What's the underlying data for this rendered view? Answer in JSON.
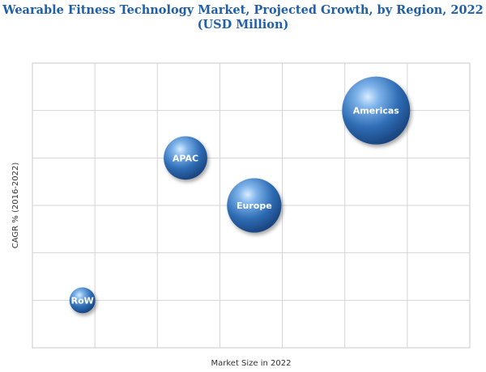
{
  "chart_data": {
    "type": "scatter",
    "title_line1": "Wearable Fitness Technology Market, Projected Growth, by Region, 2022",
    "title_line2": "(USD Million)",
    "xlabel": "Market Size in 2022",
    "ylabel": "CAGR % (2016-2022)",
    "grid": true,
    "x_ticks_shown": false,
    "y_ticks_shown": false,
    "xlim": [
      0,
      7
    ],
    "ylim": [
      0,
      6
    ],
    "points": [
      {
        "label": "Americas",
        "x": 5.5,
        "y": 5.0,
        "size": 1.0
      },
      {
        "label": "APAC",
        "x": 2.45,
        "y": 4.0,
        "size": 0.64
      },
      {
        "label": "Europe",
        "x": 3.55,
        "y": 3.0,
        "size": 0.8
      },
      {
        "label": "RoW",
        "x": 0.8,
        "y": 1.0,
        "size": 0.38
      }
    ],
    "bubble_color": "#2f6db5"
  }
}
